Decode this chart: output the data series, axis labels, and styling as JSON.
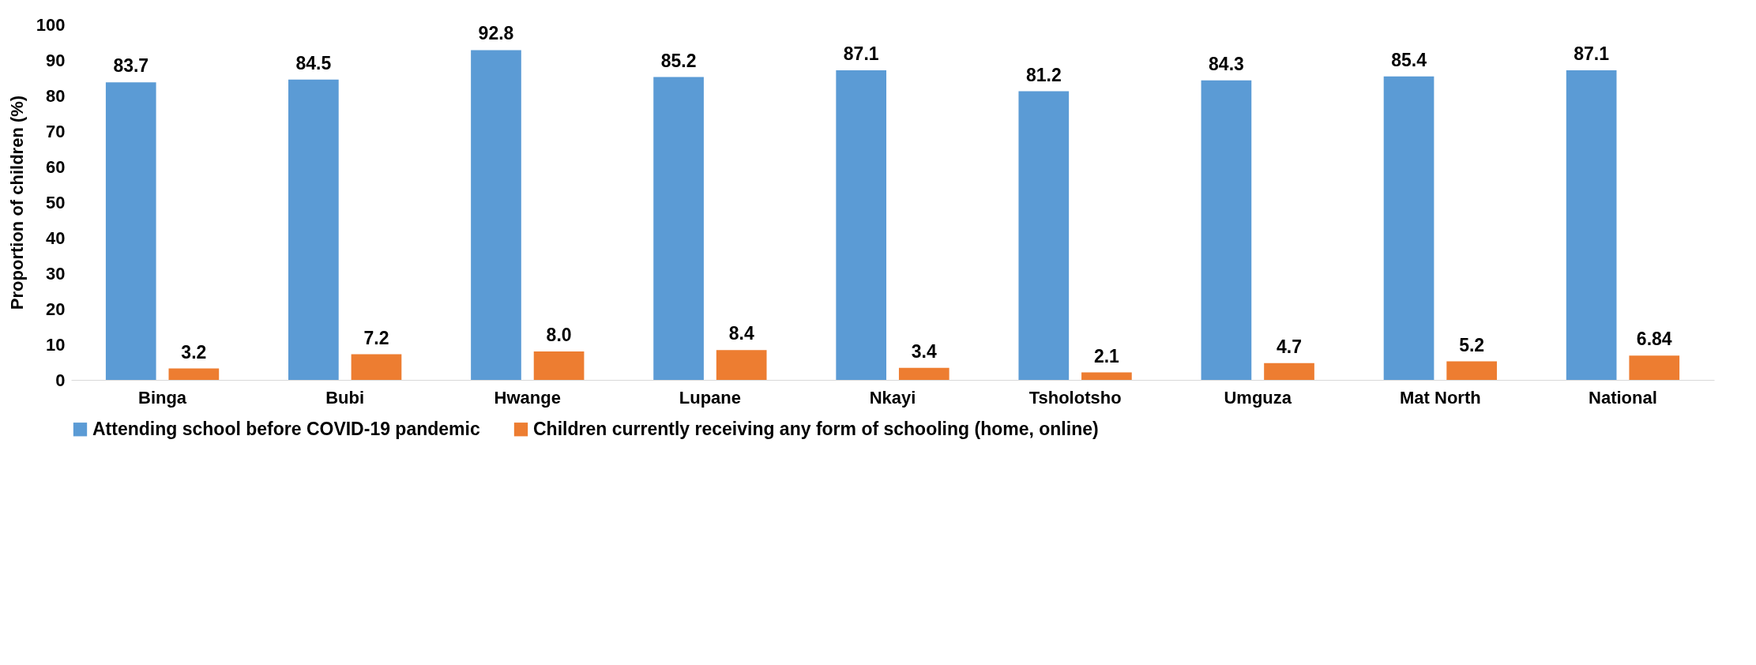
{
  "chart_data": {
    "type": "bar",
    "ylabel": "Proportion of children (%)",
    "categories": [
      "Binga",
      "Bubi",
      "Hwange",
      "Lupane",
      "Nkayi",
      "Tsholotsho",
      "Umguza",
      "Mat North",
      "National"
    ],
    "series": [
      {
        "name": "Attending school before COVID-19 pandemic",
        "color": "#5b9bd5",
        "values": [
          83.7,
          84.5,
          92.8,
          85.2,
          87.1,
          81.2,
          84.3,
          85.4,
          87.1
        ],
        "value_labels": [
          "83.7",
          "84.5",
          "92.8",
          "85.2",
          "87.1",
          "81.2",
          "84.3",
          "85.4",
          "87.1"
        ]
      },
      {
        "name": "Children currently receiving any form of schooling (home, online)",
        "color": "#ed7d31",
        "values": [
          3.2,
          7.2,
          8.0,
          8.4,
          3.4,
          2.1,
          4.7,
          5.2,
          6.84
        ],
        "value_labels": [
          "3.2",
          "7.2",
          "8.0",
          "8.4",
          "3.4",
          "2.1",
          "4.7",
          "5.2",
          "6.84"
        ]
      }
    ],
    "ylim": [
      0,
      100
    ],
    "yticks": [
      0,
      10,
      20,
      30,
      40,
      50,
      60,
      70,
      80,
      90,
      100
    ],
    "legend": "bottom"
  }
}
